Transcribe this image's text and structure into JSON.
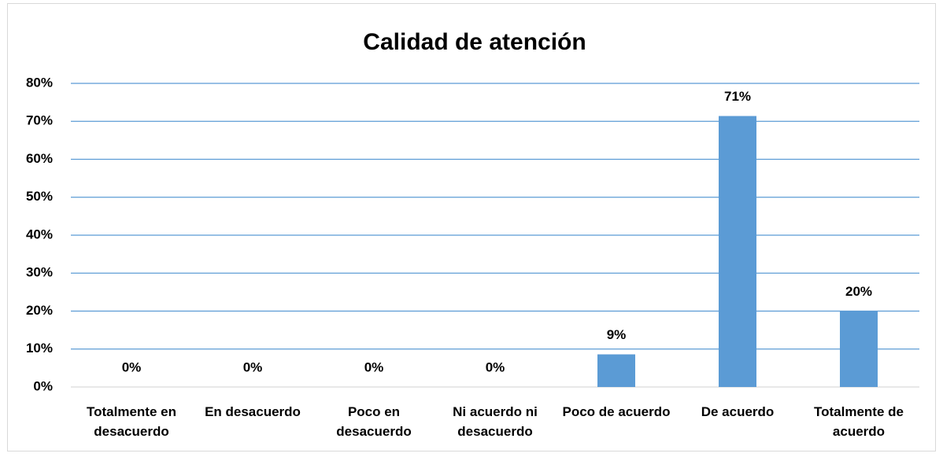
{
  "chart_data": {
    "type": "bar",
    "title": "Calidad de atención",
    "categories": [
      "Totalmente en desacuerdo",
      "En desacuerdo",
      "Poco en desacuerdo",
      "Ni acuerdo ni desacuerdo",
      "Poco de acuerdo",
      "De acuerdo",
      "Totalmente de acuerdo"
    ],
    "values": [
      0,
      0,
      0,
      0,
      8.6,
      71.4,
      20.0
    ],
    "value_labels": [
      "0%",
      "0%",
      "0%",
      "0%",
      "9%",
      "71%",
      "20%"
    ],
    "color": "#5b9bd5",
    "ylim": [
      0,
      80
    ],
    "yticks": [
      {
        "value": 0,
        "label": "0%"
      },
      {
        "value": 10,
        "label": "10%"
      },
      {
        "value": 20,
        "label": "20%"
      },
      {
        "value": 30,
        "label": "30%"
      },
      {
        "value": 40,
        "label": "40%"
      },
      {
        "value": 50,
        "label": "50%"
      },
      {
        "value": 60,
        "label": "60%"
      },
      {
        "value": 70,
        "label": "70%"
      },
      {
        "value": 80,
        "label": "80%"
      }
    ],
    "grid": true
  }
}
